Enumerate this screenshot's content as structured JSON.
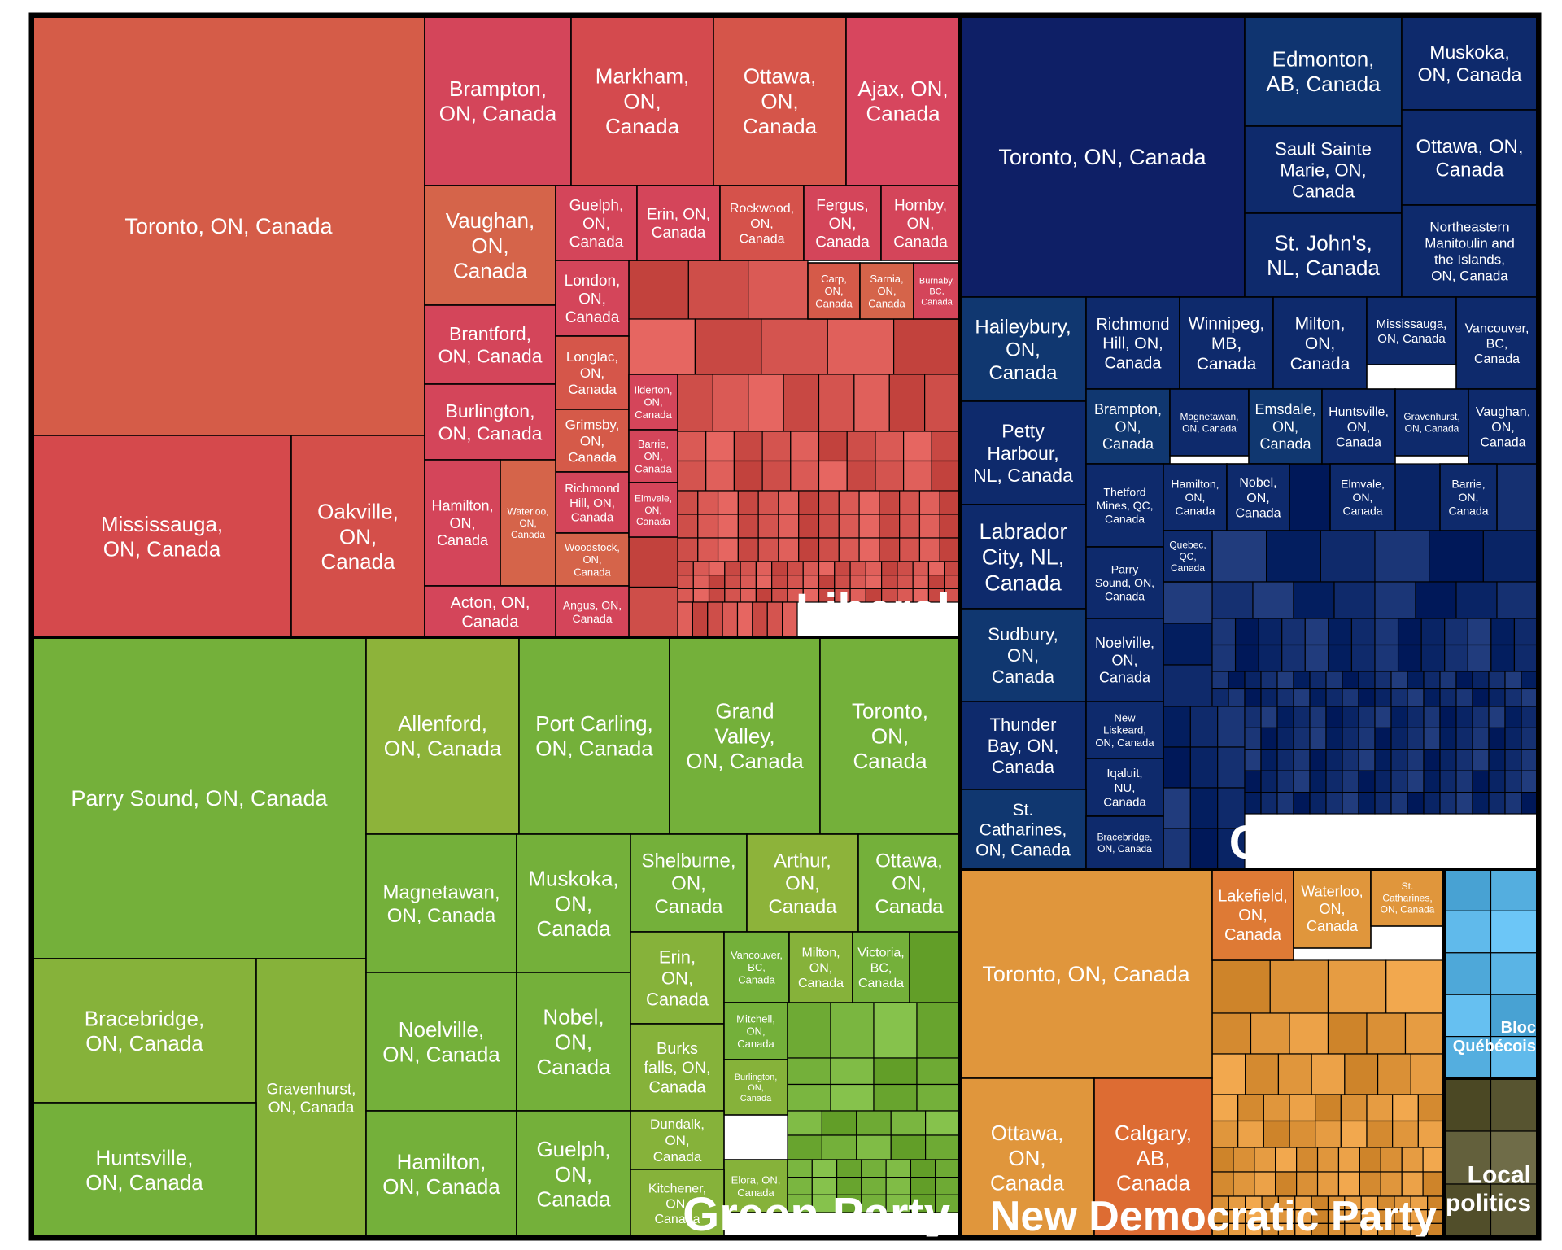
{
  "chart_data": {
    "type": "treemap",
    "title": "",
    "groups": [
      {
        "name": "Liberal",
        "color": "#d4544f",
        "cells": [
          {
            "label": "Toronto, ON, Canada",
            "color": "#d55c48"
          },
          {
            "label": "Mississauga, ON, Canada",
            "color": "#d5494c"
          },
          {
            "label": "Oakville, ON, Canada",
            "color": "#d44f4a"
          },
          {
            "label": "Brampton, ON, Canada",
            "color": "#d4455a"
          },
          {
            "label": "Markham, ON, Canada",
            "color": "#d44a4e"
          },
          {
            "label": "Ottawa, ON, Canada",
            "color": "#d5554a"
          },
          {
            "label": "Ajax, ON, Canada",
            "color": "#d7465e"
          },
          {
            "label": "Vaughan, ON, Canada",
            "color": "#d5644a"
          },
          {
            "label": "Brantford, ON, Canada",
            "color": "#d4455a"
          },
          {
            "label": "Burlington, ON, Canada",
            "color": "#d4455a"
          },
          {
            "label": "Guelph, ON, Canada",
            "color": "#d4455a"
          },
          {
            "label": "Erin, ON, Canada",
            "color": "#d4455a"
          },
          {
            "label": "Rockwood, ON, Canada",
            "color": "#d5524b"
          },
          {
            "label": "Fergus, ON, Canada",
            "color": "#d4455a"
          },
          {
            "label": "Hornby, ON, Canada",
            "color": "#d4455a"
          },
          {
            "label": "London, ON, Canada",
            "color": "#d4455a"
          },
          {
            "label": "Longlac, ON, Canada",
            "color": "#d5564a"
          },
          {
            "label": "Grimsby, ON, Canada",
            "color": "#d55a49"
          },
          {
            "label": "Richmond Hill, ON, Canada",
            "color": "#d4455a"
          },
          {
            "label": "Woodstock, ON, Canada",
            "color": "#d5644a"
          },
          {
            "label": "Angus, ON, Canada",
            "color": "#d4455a"
          },
          {
            "label": "Hamilton, ON, Canada",
            "color": "#d4455a"
          },
          {
            "label": "Waterloo, ON, Canada",
            "color": "#d5644a"
          },
          {
            "label": "Acton, ON, Canada",
            "color": "#d4455a"
          },
          {
            "label": "Ilderton, ON, Canada",
            "color": "#d4455a"
          },
          {
            "label": "Barrie, ON, Canada",
            "color": "#d4455a"
          },
          {
            "label": "Elmvale, ON, Canada",
            "color": "#d4455a"
          },
          {
            "label": "Carp, ON, Canada",
            "color": "#d55a49"
          },
          {
            "label": "Sarnia, ON, Canada",
            "color": "#d5644a"
          },
          {
            "label": "Burnaby, BC, Canada",
            "color": "#d4455a"
          }
        ]
      },
      {
        "name": "Conservative",
        "color": "#0f2a6b",
        "cells": [
          {
            "label": "Toronto, ON, Canada",
            "color": "#0e1f66"
          },
          {
            "label": "Edmonton, AB, Canada",
            "color": "#0f3470"
          },
          {
            "label": "Muskoka, ON, Canada",
            "color": "#0e2a6c"
          },
          {
            "label": "Sault Sainte Marie, ON, Canada",
            "color": "#0e2a6c"
          },
          {
            "label": "Ottawa, ON, Canada",
            "color": "#0e2a6c"
          },
          {
            "label": "St. John's, NL, Canada",
            "color": "#0e2a6c"
          },
          {
            "label": "Northeastern Manitoulin and the Islands, ON, Canada",
            "color": "#0e2a6c"
          },
          {
            "label": "Haileybury, ON, Canada",
            "color": "#103770"
          },
          {
            "label": "Richmond Hill, ON, Canada",
            "color": "#0e2a6c"
          },
          {
            "label": "Winnipeg, MB, Canada",
            "color": "#0e2a6c"
          },
          {
            "label": "Milton, ON, Canada",
            "color": "#0e2a6c"
          },
          {
            "label": "Mississauga, ON, Canada",
            "color": "#0e2a6c"
          },
          {
            "label": "Vancouver, BC, Canada",
            "color": "#0e2a6c"
          },
          {
            "label": "Petty Harbour, NL, Canada",
            "color": "#0e2a6c"
          },
          {
            "label": "Brampton, ON, Canada",
            "color": "#103770"
          },
          {
            "label": "Magnetawan, ON, Canada",
            "color": "#0e2a6c"
          },
          {
            "label": "Emsdale, ON, Canada",
            "color": "#103770"
          },
          {
            "label": "Huntsville, ON, Canada",
            "color": "#0e2a6c"
          },
          {
            "label": "Gravenhurst, ON, Canada",
            "color": "#0e2a6c"
          },
          {
            "label": "Vaughan, ON, Canada",
            "color": "#0e2a6c"
          },
          {
            "label": "Labrador City, NL, Canada",
            "color": "#0e2a6c"
          },
          {
            "label": "Thetford Mines, QC, Canada",
            "color": "#0e2a6c"
          },
          {
            "label": "Hamilton, ON, Canada",
            "color": "#0e2a6c"
          },
          {
            "label": "Nobel, ON, Canada",
            "color": "#0e2a6c"
          },
          {
            "label": "Elmvale, ON, Canada",
            "color": "#0e2a6c"
          },
          {
            "label": "Barrie, ON, Canada",
            "color": "#0e2a6c"
          },
          {
            "label": "Quebec, QC, Canada",
            "color": "#0e2a6c"
          },
          {
            "label": "Sudbury, ON, Canada",
            "color": "#103770"
          },
          {
            "label": "Parry Sound, ON, Canada",
            "color": "#0e2a6c"
          },
          {
            "label": "Noelville, ON, Canada",
            "color": "#0e2a6c"
          },
          {
            "label": "Thunder Bay, ON, Canada",
            "color": "#0e2a6c"
          },
          {
            "label": "New Liskeard, ON, Canada",
            "color": "#0e2a6c"
          },
          {
            "label": "Iqaluit, NU, Canada",
            "color": "#0e2a6c"
          },
          {
            "label": "St. Catharines, ON, Canada",
            "color": "#103770"
          },
          {
            "label": "Bracebridge, ON, Canada",
            "color": "#0e2a6c"
          }
        ]
      },
      {
        "name": "Green Party",
        "color": "#74b03a",
        "cells": [
          {
            "label": "Parry Sound, ON, Canada",
            "color": "#74b03a"
          },
          {
            "label": "Allenford, ON, Canada",
            "color": "#8db33a"
          },
          {
            "label": "Port Carling, ON, Canada",
            "color": "#74b03a"
          },
          {
            "label": "Grand Valley, ON, Canada",
            "color": "#74b03a"
          },
          {
            "label": "Toronto, ON, Canada",
            "color": "#74b03a"
          },
          {
            "label": "Bracebridge, ON, Canada",
            "color": "#86b23a"
          },
          {
            "label": "Gravenhurst, ON, Canada",
            "color": "#86b23a"
          },
          {
            "label": "Huntsville, ON, Canada",
            "color": "#74b03a"
          },
          {
            "label": "Magnetawan, ON, Canada",
            "color": "#74b03a"
          },
          {
            "label": "Muskoka, ON, Canada",
            "color": "#74b03a"
          },
          {
            "label": "Shelburne, ON, Canada",
            "color": "#74b03a"
          },
          {
            "label": "Arthur, ON, Canada",
            "color": "#8db33a"
          },
          {
            "label": "Ottawa, ON, Canada",
            "color": "#74b03a"
          },
          {
            "label": "Noelville, ON, Canada",
            "color": "#74b03a"
          },
          {
            "label": "Nobel, ON, Canada",
            "color": "#74b03a"
          },
          {
            "label": "Erin, ON, Canada",
            "color": "#86b23a"
          },
          {
            "label": "Vancouver, BC, Canada",
            "color": "#74b03a"
          },
          {
            "label": "Milton, ON, Canada",
            "color": "#86b23a"
          },
          {
            "label": "Victoria, BC, Canada",
            "color": "#74b03a"
          },
          {
            "label": "Hamilton, ON, Canada",
            "color": "#74b03a"
          },
          {
            "label": "Guelph, ON, Canada",
            "color": "#74b03a"
          },
          {
            "label": "Burks falls, ON, Canada",
            "color": "#86b23a"
          },
          {
            "label": "Mitchell, ON, Canada",
            "color": "#74b03a"
          },
          {
            "label": "Burlington, ON, Canada",
            "color": "#86b23a"
          },
          {
            "label": "Dundalk, ON, Canada",
            "color": "#86b23a"
          },
          {
            "label": "Elora, ON, Canada",
            "color": "#86b23a"
          },
          {
            "label": "Kitchener, ON, Canada",
            "color": "#86b23a"
          }
        ]
      },
      {
        "name": "New Democratic Party",
        "color": "#e0963c",
        "cells": [
          {
            "label": "Toronto, ON, Canada",
            "color": "#e0963c"
          },
          {
            "label": "Lakefield, ON, Canada",
            "color": "#de7a35"
          },
          {
            "label": "Waterloo, ON, Canada",
            "color": "#e0963c"
          },
          {
            "label": "St. Catharines, ON, Canada",
            "color": "#e0963c"
          },
          {
            "label": "Ottawa, ON, Canada",
            "color": "#e0963c"
          },
          {
            "label": "Calgary, AB, Canada",
            "color": "#dd6c33"
          }
        ]
      },
      {
        "name": "Bloc Québécois",
        "color": "#5ab4e5",
        "cells": []
      },
      {
        "name": "Local politics",
        "color": "#5d5a36",
        "cells": []
      }
    ]
  }
}
